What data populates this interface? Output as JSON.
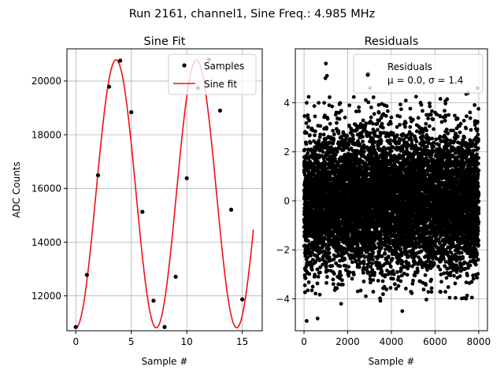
{
  "figure": {
    "suptitle": "Run 2161, channel1, Sine Freq.: 4.985 MHz"
  },
  "chart_data": [
    {
      "type": "line",
      "title": "Sine Fit",
      "xlabel": "Sample #",
      "ylabel": "ADC Counts",
      "xlim": [
        -0.8,
        16.8
      ],
      "ylim": [
        10700,
        21200
      ],
      "xticks": [
        0,
        5,
        10,
        15
      ],
      "yticks": [
        12000,
        14000,
        16000,
        18000,
        20000
      ],
      "grid": true,
      "legend_position": "top-right",
      "series": [
        {
          "name": "Samples",
          "kind": "scatter",
          "color": "#000000",
          "x": [
            0,
            1,
            2,
            3,
            4,
            5,
            6,
            7,
            8,
            9,
            10,
            11,
            12,
            13,
            14,
            15
          ],
          "y": [
            10840,
            12780,
            16490,
            19790,
            20760,
            18840,
            15130,
            11820,
            10840,
            12710,
            16380,
            19740,
            20800,
            18900,
            15210,
            11870
          ]
        },
        {
          "name": "Sine fit",
          "kind": "line",
          "color": "#ee1111",
          "fit": {
            "offset": 15800,
            "amplitude": 4990,
            "period": 7.25,
            "phase_sample": 0,
            "x_end": 16
          }
        }
      ]
    },
    {
      "type": "scatter",
      "title": "Residuals",
      "xlabel": "Sample #",
      "ylabel": "",
      "xlim": [
        -400,
        8400
      ],
      "ylim": [
        -5.3,
        6.2
      ],
      "xticks": [
        0,
        2000,
        4000,
        6000,
        8000
      ],
      "yticks": [
        -4,
        -2,
        0,
        2,
        4
      ],
      "grid": true,
      "legend_position": "top-right",
      "legend_label": "Residuals",
      "legend_stats": "μ = 0.0, σ = 1.4",
      "color": "#000000",
      "n_points": 8000,
      "mean": 0.0,
      "sigma": 1.4,
      "outliers": [
        {
          "x": 1000,
          "y": 5.6
        },
        {
          "x": 1050,
          "y": 5.1
        },
        {
          "x": 980,
          "y": 5.0
        },
        {
          "x": 2950,
          "y": 5.2
        },
        {
          "x": 3020,
          "y": 4.6
        },
        {
          "x": 7950,
          "y": 4.6
        },
        {
          "x": 120,
          "y": -4.9
        },
        {
          "x": 620,
          "y": -4.8
        },
        {
          "x": 1700,
          "y": -4.2
        },
        {
          "x": 4500,
          "y": -4.5
        }
      ]
    }
  ]
}
